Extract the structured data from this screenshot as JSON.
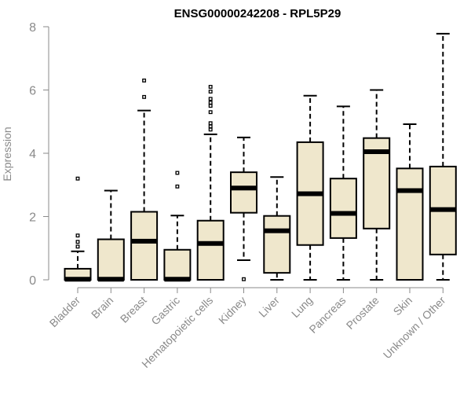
{
  "chart_data": {
    "type": "boxplot",
    "title": "ENSG00000242208 - RPL5P29",
    "xlabel": "",
    "ylabel": "Expression",
    "ylim": [
      0,
      8
    ],
    "yticks": [
      0,
      2,
      4,
      6,
      8
    ],
    "colors": {
      "box_fill": "#efe7cc",
      "axis": "#8a8a8a",
      "stroke": "#000000"
    },
    "categories": [
      "Bladder",
      "Brain",
      "Breast",
      "Gastric",
      "Hematopoietic cells",
      "Kidney",
      "Liver",
      "Lung",
      "Pancreas",
      "Prostate",
      "Skin",
      "Unknown / Other"
    ],
    "boxes": [
      {
        "name": "Bladder",
        "whisker_low": 0,
        "q1": 0,
        "median": 0.02,
        "q3": 0.35,
        "whisker_high": 0.9,
        "outliers": [
          1.05,
          1.2,
          1.4,
          3.2
        ]
      },
      {
        "name": "Brain",
        "whisker_low": 0,
        "q1": 0,
        "median": 0.02,
        "q3": 1.28,
        "whisker_high": 2.82,
        "outliers": []
      },
      {
        "name": "Breast",
        "whisker_low": 0,
        "q1": 0,
        "median": 1.22,
        "q3": 2.15,
        "whisker_high": 5.35,
        "outliers": [
          5.78,
          6.3
        ]
      },
      {
        "name": "Gastric",
        "whisker_low": 0,
        "q1": 0,
        "median": 0.02,
        "q3": 0.95,
        "whisker_high": 2.03,
        "outliers": [
          2.95,
          3.38
        ]
      },
      {
        "name": "Hematopoietic cells",
        "whisker_low": 0,
        "q1": 0,
        "median": 1.15,
        "q3": 1.87,
        "whisker_high": 4.6,
        "outliers": [
          4.75,
          4.85,
          4.95,
          5.3,
          5.5,
          5.6,
          5.72,
          5.95,
          6.1
        ]
      },
      {
        "name": "Kidney",
        "whisker_low": 0.62,
        "q1": 2.12,
        "median": 2.9,
        "q3": 3.4,
        "whisker_high": 4.5,
        "outliers": [
          0.02
        ]
      },
      {
        "name": "Liver",
        "whisker_low": 0,
        "q1": 0.22,
        "median": 1.55,
        "q3": 2.02,
        "whisker_high": 3.25,
        "outliers": []
      },
      {
        "name": "Lung",
        "whisker_low": 0,
        "q1": 1.1,
        "median": 2.72,
        "q3": 4.35,
        "whisker_high": 5.82,
        "outliers": []
      },
      {
        "name": "Pancreas",
        "whisker_low": 0,
        "q1": 1.32,
        "median": 2.1,
        "q3": 3.2,
        "whisker_high": 5.48,
        "outliers": []
      },
      {
        "name": "Prostate",
        "whisker_low": 0,
        "q1": 1.62,
        "median": 4.05,
        "q3": 4.48,
        "whisker_high": 6.0,
        "outliers": []
      },
      {
        "name": "Skin",
        "whisker_low": 0,
        "q1": 0,
        "median": 2.82,
        "q3": 3.52,
        "whisker_high": 4.92,
        "outliers": []
      },
      {
        "name": "Unknown / Other",
        "whisker_low": 0,
        "q1": 0.8,
        "median": 2.22,
        "q3": 3.58,
        "whisker_high": 7.78,
        "outliers": []
      }
    ]
  }
}
